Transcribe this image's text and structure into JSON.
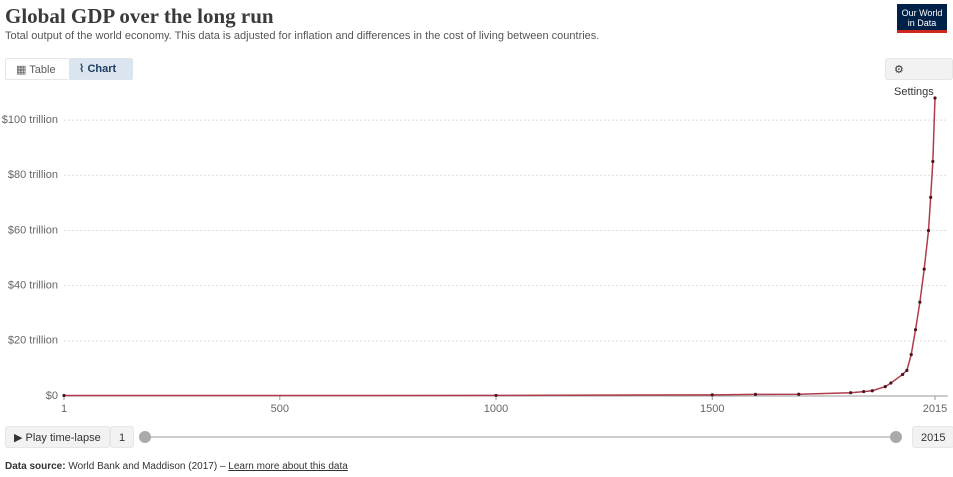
{
  "header": {
    "title": "Global GDP over the long run",
    "subtitle": "Total output of the world economy. This data is adjusted for inflation and differences in the cost of living between countries.",
    "logo": [
      "Our World",
      "in Data"
    ]
  },
  "tabs": [
    "Table",
    "Chart"
  ],
  "settings": "Settings",
  "chart_data": {
    "type": "line",
    "x": [
      1,
      1000,
      1500,
      1600,
      1700,
      1820,
      1850,
      1870,
      1900,
      1913,
      1940,
      1950,
      1960,
      1970,
      1980,
      1990,
      2000,
      2005,
      2010,
      2015
    ],
    "values": [
      0.18,
      0.21,
      0.43,
      0.6,
      0.64,
      1.2,
      1.6,
      1.9,
      3.4,
      4.7,
      7.8,
      9.3,
      15,
      24,
      34,
      46,
      60,
      72,
      85,
      108
    ],
    "color": "#b13a4c",
    "xlim": [
      1,
      2015
    ],
    "xticks": [
      1,
      500,
      1000,
      1500,
      2015
    ],
    "ylim": [
      0,
      108
    ],
    "yticks": [
      {
        "value": 0,
        "label": "$0"
      },
      {
        "value": 20,
        "label": "$20 trillion"
      },
      {
        "value": 40,
        "label": "$40 trillion"
      },
      {
        "value": 60,
        "label": "$60 trillion"
      },
      {
        "value": 80,
        "label": "$80 trillion"
      },
      {
        "value": 100,
        "label": "$100 trillion"
      }
    ],
    "grid": true
  },
  "timeline": {
    "play": "Play time-lapse",
    "start": 1,
    "end": 2015
  },
  "footer": {
    "label": "Data source:",
    "source": "World Bank and Maddison (2017)",
    "separator": "–",
    "link": "Learn more about this data"
  }
}
